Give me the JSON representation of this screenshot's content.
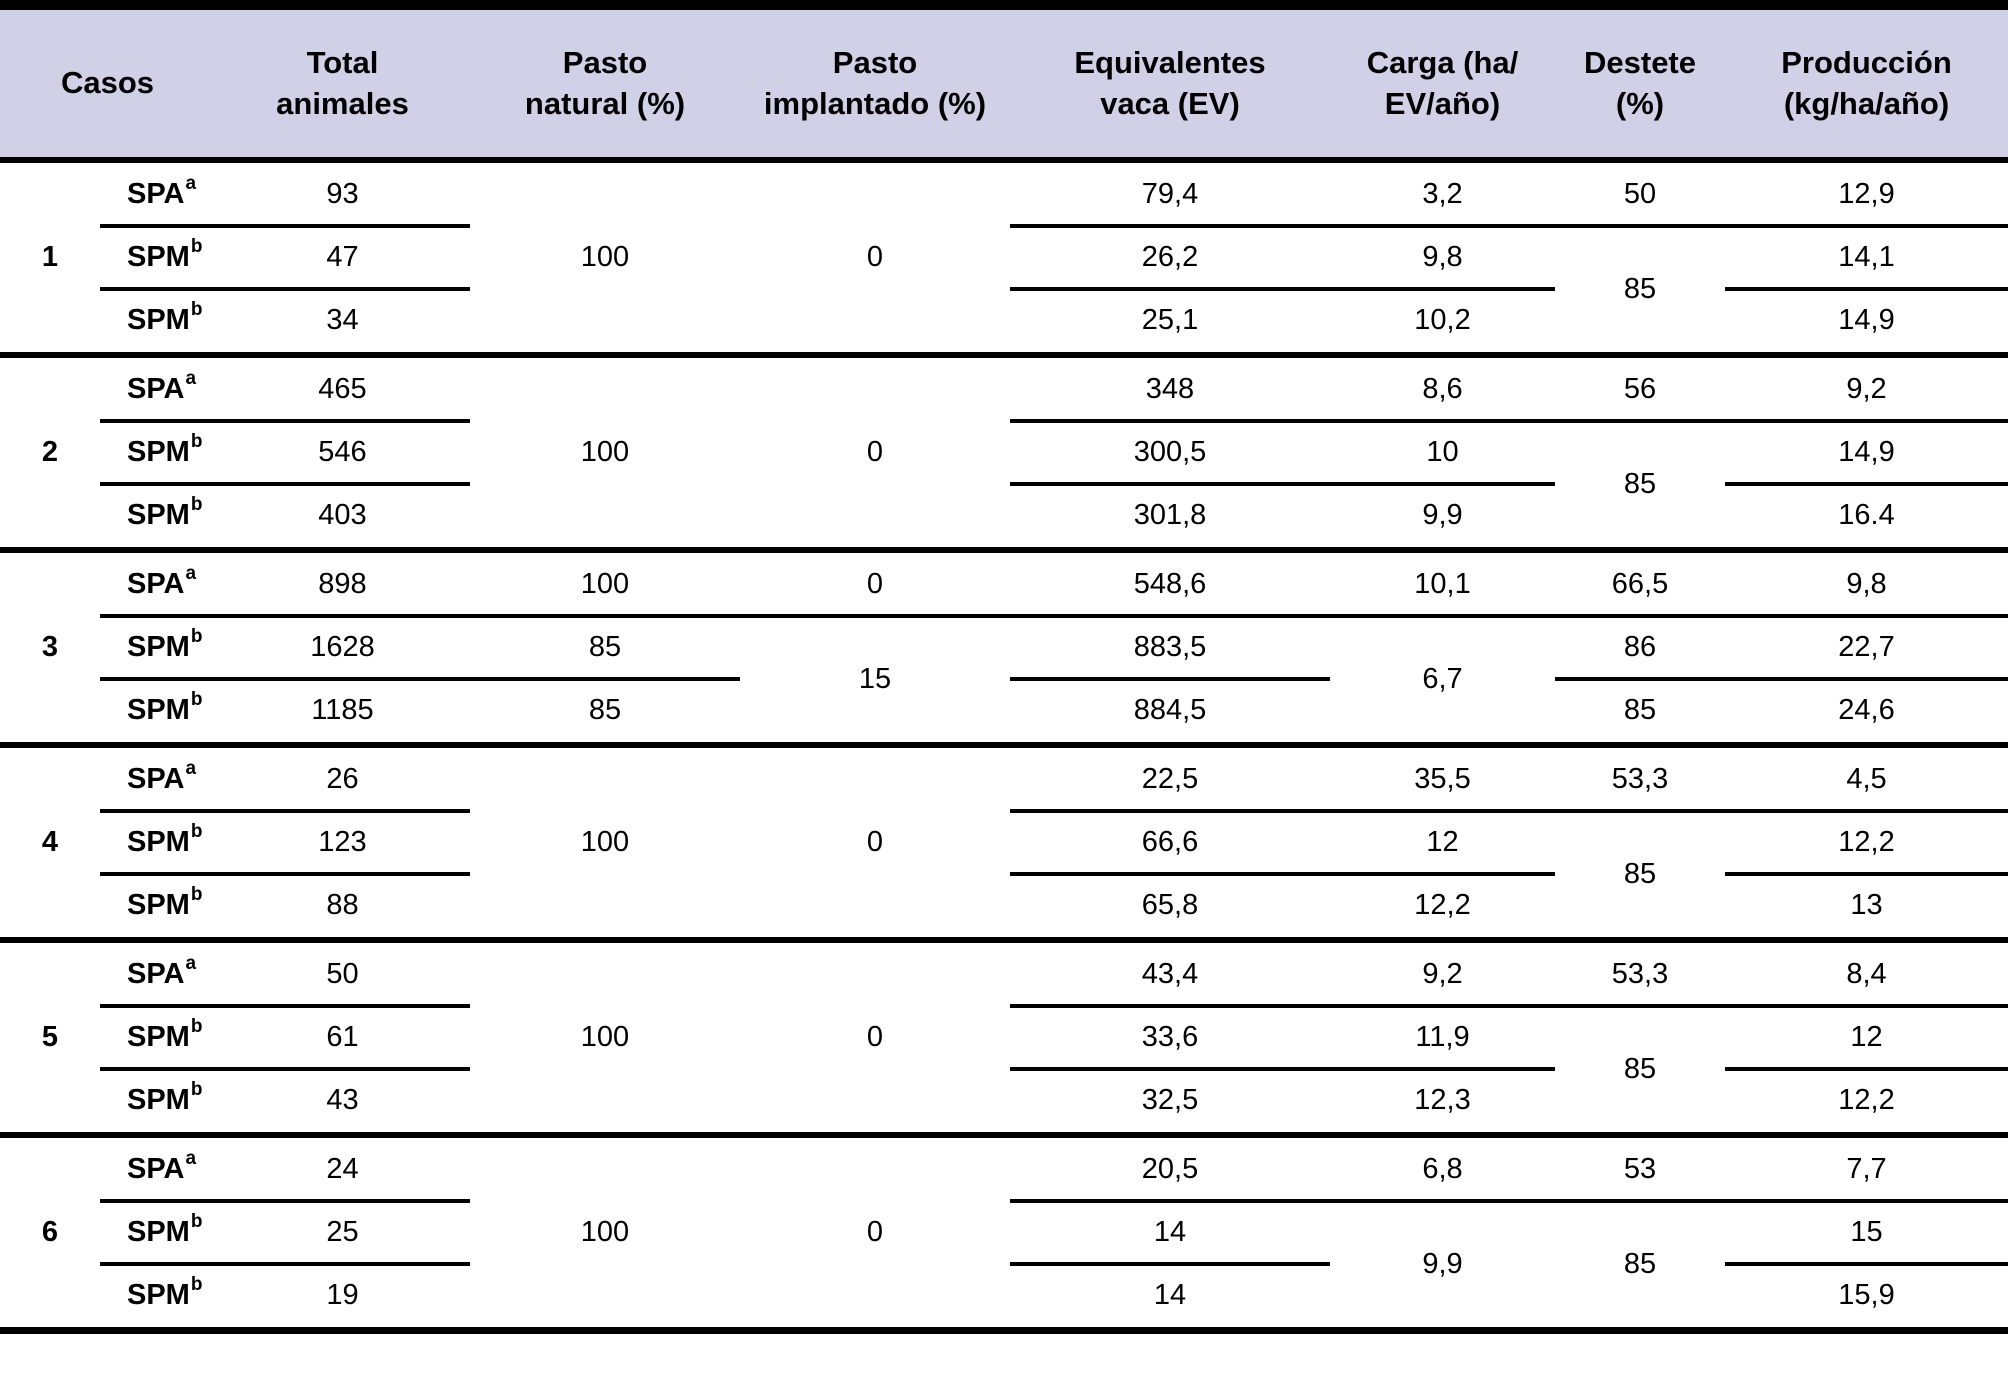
{
  "table": {
    "columns": [
      {
        "id": "casos",
        "label": "Casos"
      },
      {
        "id": "total",
        "label": "Total\nanimales"
      },
      {
        "id": "pasto_natural",
        "label": "Pasto\nnatural (%)"
      },
      {
        "id": "pasto_implantado",
        "label": "Pasto\nimplantado (%)"
      },
      {
        "id": "ev",
        "label": "Equivalentes\nvaca (EV)"
      },
      {
        "id": "carga",
        "label": "Carga (ha/\nEV/año)"
      },
      {
        "id": "destete",
        "label": "Destete\n(%)"
      },
      {
        "id": "produccion",
        "label": "Producción\n(kg/ha/año)"
      }
    ],
    "header_bg": "#d0d0e6",
    "rule_color": "#000000",
    "groups": [
      {
        "caso": "1",
        "label": [
          {
            "v": "SPA",
            "sup": "a"
          },
          {
            "v": "SPM",
            "sup": "b"
          },
          {
            "v": "SPM",
            "sup": "b"
          }
        ],
        "total": [
          {
            "v": "93"
          },
          {
            "v": "47"
          },
          {
            "v": "34"
          }
        ],
        "pasto_natural": [
          {
            "v": "100",
            "rows": 3
          }
        ],
        "pasto_implantado": [
          {
            "v": "0",
            "rows": 3
          }
        ],
        "ev": [
          {
            "v": "79,4"
          },
          {
            "v": "26,2"
          },
          {
            "v": "25,1"
          }
        ],
        "carga": [
          {
            "v": "3,2"
          },
          {
            "v": "9,8"
          },
          {
            "v": "10,2"
          }
        ],
        "destete": [
          {
            "v": "50"
          },
          {
            "v": "85",
            "rows": 2
          }
        ],
        "produccion": [
          {
            "v": "12,9"
          },
          {
            "v": "14,1"
          },
          {
            "v": "14,9"
          }
        ]
      },
      {
        "caso": "2",
        "label": [
          {
            "v": "SPA",
            "sup": "a"
          },
          {
            "v": "SPM",
            "sup": "b"
          },
          {
            "v": "SPM",
            "sup": "b"
          }
        ],
        "total": [
          {
            "v": "465"
          },
          {
            "v": "546"
          },
          {
            "v": "403"
          }
        ],
        "pasto_natural": [
          {
            "v": "100",
            "rows": 3
          }
        ],
        "pasto_implantado": [
          {
            "v": "0",
            "rows": 3
          }
        ],
        "ev": [
          {
            "v": "348"
          },
          {
            "v": "300,5"
          },
          {
            "v": "301,8"
          }
        ],
        "carga": [
          {
            "v": "8,6"
          },
          {
            "v": "10"
          },
          {
            "v": "9,9"
          }
        ],
        "destete": [
          {
            "v": "56"
          },
          {
            "v": "85",
            "rows": 2
          }
        ],
        "produccion": [
          {
            "v": "9,2"
          },
          {
            "v": "14,9"
          },
          {
            "v": "16.4"
          }
        ]
      },
      {
        "caso": "3",
        "label": [
          {
            "v": "SPA",
            "sup": "a"
          },
          {
            "v": "SPM",
            "sup": "b"
          },
          {
            "v": "SPM",
            "sup": "b"
          }
        ],
        "total": [
          {
            "v": "898"
          },
          {
            "v": "1628"
          },
          {
            "v": "1185"
          }
        ],
        "pasto_natural": [
          {
            "v": "100"
          },
          {
            "v": "85"
          },
          {
            "v": "85"
          }
        ],
        "pasto_implantado": [
          {
            "v": "0"
          },
          {
            "v": "15",
            "rows": 2
          }
        ],
        "ev": [
          {
            "v": "548,6"
          },
          {
            "v": "883,5"
          },
          {
            "v": "884,5"
          }
        ],
        "carga": [
          {
            "v": "10,1"
          },
          {
            "v": "6,7",
            "rows": 2
          }
        ],
        "destete": [
          {
            "v": "66,5"
          },
          {
            "v": "86"
          },
          {
            "v": "85"
          }
        ],
        "produccion": [
          {
            "v": "9,8"
          },
          {
            "v": "22,7"
          },
          {
            "v": "24,6"
          }
        ]
      },
      {
        "caso": "4",
        "label": [
          {
            "v": "SPA",
            "sup": "a"
          },
          {
            "v": "SPM",
            "sup": "b"
          },
          {
            "v": "SPM",
            "sup": "b"
          }
        ],
        "total": [
          {
            "v": "26"
          },
          {
            "v": "123"
          },
          {
            "v": "88"
          }
        ],
        "pasto_natural": [
          {
            "v": "100",
            "rows": 3
          }
        ],
        "pasto_implantado": [
          {
            "v": "0",
            "rows": 3
          }
        ],
        "ev": [
          {
            "v": "22,5"
          },
          {
            "v": "66,6"
          },
          {
            "v": "65,8"
          }
        ],
        "carga": [
          {
            "v": "35,5"
          },
          {
            "v": "12"
          },
          {
            "v": "12,2"
          }
        ],
        "destete": [
          {
            "v": "53,3"
          },
          {
            "v": "85",
            "rows": 2
          }
        ],
        "produccion": [
          {
            "v": "4,5"
          },
          {
            "v": "12,2"
          },
          {
            "v": "13"
          }
        ]
      },
      {
        "caso": "5",
        "label": [
          {
            "v": "SPA",
            "sup": "a"
          },
          {
            "v": "SPM",
            "sup": "b"
          },
          {
            "v": "SPM",
            "sup": "b"
          }
        ],
        "total": [
          {
            "v": "50"
          },
          {
            "v": "61"
          },
          {
            "v": "43"
          }
        ],
        "pasto_natural": [
          {
            "v": "100",
            "rows": 3
          }
        ],
        "pasto_implantado": [
          {
            "v": "0",
            "rows": 3
          }
        ],
        "ev": [
          {
            "v": "43,4"
          },
          {
            "v": "33,6"
          },
          {
            "v": "32,5"
          }
        ],
        "carga": [
          {
            "v": "9,2"
          },
          {
            "v": "11,9"
          },
          {
            "v": "12,3"
          }
        ],
        "destete": [
          {
            "v": "53,3"
          },
          {
            "v": "85",
            "rows": 2
          }
        ],
        "produccion": [
          {
            "v": "8,4"
          },
          {
            "v": "12"
          },
          {
            "v": "12,2"
          }
        ]
      },
      {
        "caso": "6",
        "label": [
          {
            "v": "SPA",
            "sup": "a"
          },
          {
            "v": "SPM",
            "sup": "b"
          },
          {
            "v": "SPM",
            "sup": "b"
          }
        ],
        "total": [
          {
            "v": "24"
          },
          {
            "v": "25"
          },
          {
            "v": "19"
          }
        ],
        "pasto_natural": [
          {
            "v": "100",
            "rows": 3
          }
        ],
        "pasto_implantado": [
          {
            "v": "0",
            "rows": 3
          }
        ],
        "ev": [
          {
            "v": "20,5"
          },
          {
            "v": "14"
          },
          {
            "v": "14"
          }
        ],
        "carga": [
          {
            "v": "6,8"
          },
          {
            "v": "9,9",
            "rows": 2
          }
        ],
        "destete": [
          {
            "v": "53"
          },
          {
            "v": "85",
            "rows": 2
          }
        ],
        "produccion": [
          {
            "v": "7,7"
          },
          {
            "v": "15"
          },
          {
            "v": "15,9"
          }
        ]
      }
    ]
  }
}
